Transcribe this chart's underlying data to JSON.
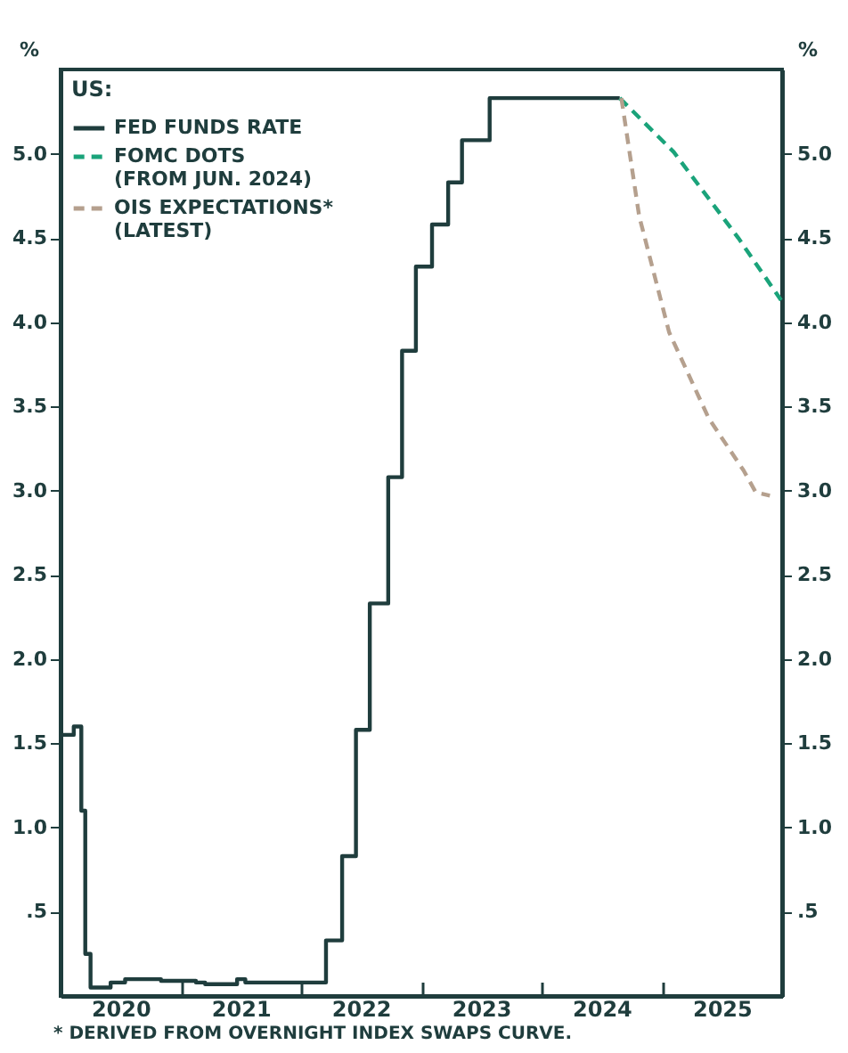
{
  "chart_data": {
    "type": "step",
    "legend_title": "US:",
    "ylabel": "%",
    "y2label": "%",
    "xlim": [
      "2020-01-01",
      "2025-12-31"
    ],
    "xticks": [
      {
        "value": "2020-07-01",
        "label": "2020"
      },
      {
        "value": "2021-01-01",
        "label": null
      },
      {
        "value": "2021-07-01",
        "label": "2021"
      },
      {
        "value": "2022-01-01",
        "label": null
      },
      {
        "value": "2022-07-01",
        "label": "2022"
      },
      {
        "value": "2023-01-01",
        "label": null
      },
      {
        "value": "2023-07-01",
        "label": "2023"
      },
      {
        "value": "2024-01-01",
        "label": null
      },
      {
        "value": "2024-07-01",
        "label": "2024"
      },
      {
        "value": "2025-01-01",
        "label": null
      },
      {
        "value": "2025-07-01",
        "label": "2025"
      }
    ],
    "ylim": [
      0,
      5.5
    ],
    "yticks": [
      {
        "value": 0.5,
        "label": ".5"
      },
      {
        "value": 1,
        "label": "1.0"
      },
      {
        "value": 1.5,
        "label": "1.5"
      },
      {
        "value": 2,
        "label": "2.0"
      },
      {
        "value": 2.5,
        "label": "2.5"
      },
      {
        "value": 3,
        "label": "3.0"
      },
      {
        "value": 3.5,
        "label": "3.5"
      },
      {
        "value": 4,
        "label": "4.0"
      },
      {
        "value": 4.5,
        "label": "4.5"
      },
      {
        "value": 5,
        "label": "5.0"
      }
    ],
    "y2lim": [
      0,
      5.5
    ],
    "y2ticks": [
      {
        "value": 0.5,
        "label": ".5"
      },
      {
        "value": 1,
        "label": "1.0"
      },
      {
        "value": 1.5,
        "label": "1.5"
      },
      {
        "value": 2,
        "label": "2.0"
      },
      {
        "value": 2.5,
        "label": "2.5"
      },
      {
        "value": 3,
        "label": "3.0"
      },
      {
        "value": 3.5,
        "label": "3.5"
      },
      {
        "value": 4,
        "label": "4.0"
      },
      {
        "value": 4.5,
        "label": "4.5"
      },
      {
        "value": 5,
        "label": "5.0"
      }
    ],
    "legend": "top left",
    "grid": false,
    "series": [
      {
        "name": "FED FUNDS RATE",
        "type": "step",
        "color": "#1f3d3d",
        "line_style": "solid",
        "x": [
          "2020-01-01",
          "2020-02-10",
          "2020-03-04",
          "2020-03-16",
          "2020-04-01",
          "2020-06-01",
          "2020-07-15",
          "2020-11-01",
          "2021-02-15",
          "2021-03-15",
          "2021-06-20",
          "2021-07-15",
          "2022-03-17",
          "2022-05-05",
          "2022-06-16",
          "2022-07-28",
          "2022-09-22",
          "2022-11-03",
          "2022-12-15",
          "2023-02-02",
          "2023-03-23",
          "2023-05-04",
          "2023-07-27",
          "2024-08-25"
        ],
        "values": [
          1.55,
          1.6,
          1.1,
          0.25,
          0.05,
          0.08,
          0.1,
          0.09,
          0.08,
          0.07,
          0.1,
          0.08,
          0.33,
          0.83,
          1.58,
          2.33,
          3.08,
          3.83,
          4.33,
          4.58,
          4.83,
          5.08,
          5.33,
          5.33
        ]
      },
      {
        "name": "FOMC DOTS (FROM JUN. 2024)",
        "type": "line",
        "color": "#1aa37a",
        "line_style": "dashed",
        "x": [
          "2024-08-25",
          "2025-02-05",
          "2025-08-20",
          "2025-12-28"
        ],
        "values": [
          5.33,
          5.01,
          4.5,
          4.13
        ]
      },
      {
        "name": "OIS EXPECTATIONS* (LATEST)",
        "type": "line",
        "color": "#b5a08e",
        "line_style": "dashed",
        "x": [
          "2024-08-30",
          "2024-10-23",
          "2025-01-22",
          "2025-05-22",
          "2025-09-05",
          "2025-10-12",
          "2025-11-24"
        ],
        "values": [
          5.33,
          4.63,
          3.94,
          3.43,
          3.12,
          2.99,
          2.97
        ]
      }
    ],
    "annotations": [
      "* DERIVED FROM OVERNIGHT INDEX SWAPS CURVE."
    ]
  }
}
